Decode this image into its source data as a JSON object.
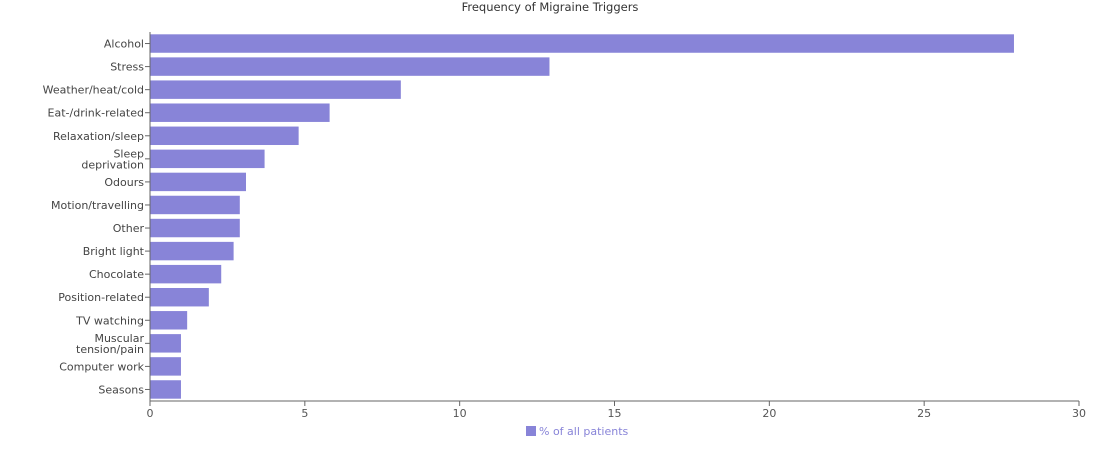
{
  "chart_data": {
    "type": "bar",
    "orientation": "horizontal",
    "title": "Frequency of Migraine Triggers",
    "categories": [
      [
        "Alcohol"
      ],
      [
        "Stress"
      ],
      [
        "Weather/heat/cold"
      ],
      [
        "Eat-/drink-related"
      ],
      [
        "Relaxation/sleep"
      ],
      [
        "Sleep",
        "deprivation"
      ],
      [
        "Odours"
      ],
      [
        "Motion/travelling"
      ],
      [
        "Other"
      ],
      [
        "Bright light"
      ],
      [
        "Chocolate"
      ],
      [
        "Position-related"
      ],
      [
        "TV watching"
      ],
      [
        "Muscular",
        "tension/pain"
      ],
      [
        "Computer work"
      ],
      [
        "Seasons"
      ]
    ],
    "series": [
      {
        "name": "% of all patients",
        "color": "#8884d8",
        "values": [
          27.9,
          12.9,
          8.1,
          5.8,
          4.8,
          3.7,
          3.1,
          2.9,
          2.9,
          2.7,
          2.3,
          1.9,
          1.2,
          1.0,
          1.0,
          1.0
        ]
      }
    ],
    "xlim": [
      0,
      30
    ],
    "xticks": [
      0,
      5,
      10,
      15,
      20,
      25,
      30
    ],
    "grid": false,
    "legend_position": "bottom"
  }
}
